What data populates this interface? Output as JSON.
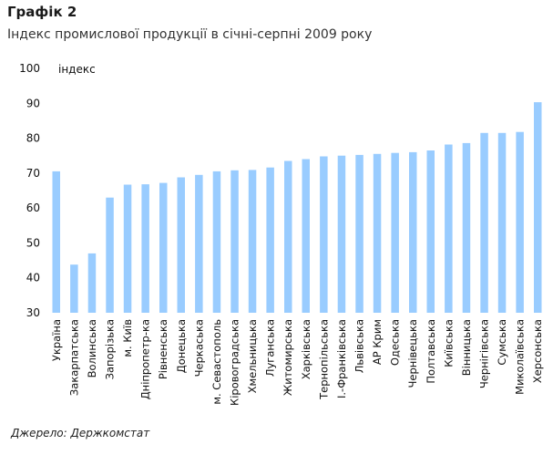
{
  "header": {
    "title": "Графік 2",
    "subtitle": "Індекс промислової продукції в січні-серпні 2009 року"
  },
  "footer": {
    "source": "Джерело: Держкомстат"
  },
  "chart_data": {
    "type": "bar",
    "title": "Індекс промислової продукції в січні-серпні 2009 року",
    "ylabel": "індекс",
    "xlabel": "",
    "ylim": [
      30,
      100
    ],
    "yticks": [
      30,
      40,
      50,
      60,
      70,
      80,
      90,
      100
    ],
    "grid": false,
    "bar_color": "#99ccff",
    "categories": [
      "Україна",
      "Закарпатська",
      "Волинська",
      "Запорізька",
      "м. Київ",
      "Дніпропетр-ка",
      "Рівненська",
      "Донецька",
      "Черкаська",
      "м. Севастополь",
      "Кіровоградська",
      "Хмельницька",
      "Луганська",
      "Житомирська",
      "Харківська",
      "Тернопільська",
      "І.-Франківська",
      "Львівська",
      "АР Крим",
      "Одеська",
      "Чернівецька",
      "Полтавська",
      "Київська",
      "Вінницька",
      "Чернігівська",
      "Сумська",
      "Миколаївська",
      "Херсонська"
    ],
    "values": [
      70.5,
      43.8,
      47,
      63,
      66.7,
      66.8,
      67.2,
      68.8,
      69.5,
      70.5,
      70.8,
      70.9,
      71.6,
      73.5,
      74,
      74.8,
      75,
      75.2,
      75.5,
      75.8,
      76,
      76.5,
      78.2,
      78.6,
      81.5,
      81.5,
      81.8,
      90.3
    ]
  }
}
